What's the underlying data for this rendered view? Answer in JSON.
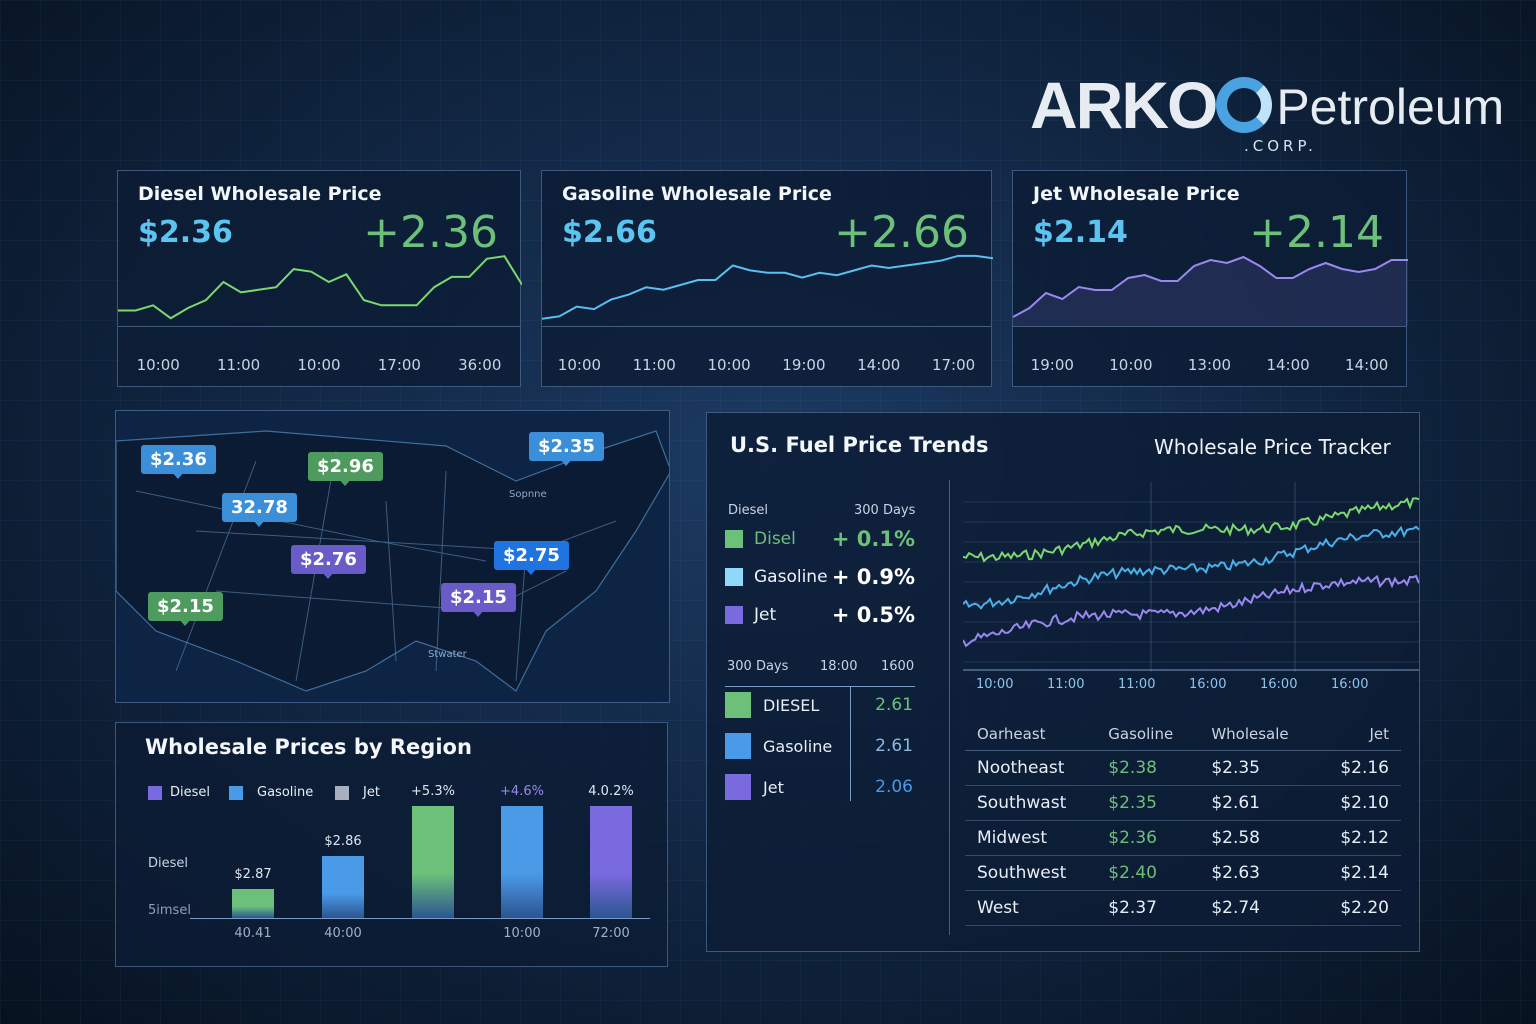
{
  "brand": {
    "name": "ARKO",
    "suffix": "Petroleum",
    "sub": ".CORP."
  },
  "cards": [
    {
      "title": "Diesel Wholesale Price",
      "price": "$2.36",
      "change": "+2.36",
      "color": "#7bd86e",
      "ticks": [
        "10:00",
        "11:00",
        "10:00",
        "17:00",
        "36:00"
      ],
      "series": [
        2.2,
        2.2,
        2.22,
        2.17,
        2.21,
        2.24,
        2.31,
        2.27,
        2.28,
        2.29,
        2.36,
        2.35,
        2.31,
        2.34,
        2.24,
        2.22,
        2.22,
        2.22,
        2.29,
        2.33,
        2.33,
        2.4,
        2.41,
        2.3
      ]
    },
    {
      "title": "Gasoline Wholesale Price",
      "price": "$2.66",
      "change": "+2.66",
      "color": "#5bc0f0",
      "ticks": [
        "10:00",
        "11:00",
        "10:00",
        "19:00",
        "14:00",
        "17:00"
      ],
      "series": [
        2.4,
        2.41,
        2.45,
        2.44,
        2.48,
        2.5,
        2.53,
        2.52,
        2.54,
        2.56,
        2.56,
        2.62,
        2.6,
        2.59,
        2.59,
        2.57,
        2.59,
        2.58,
        2.6,
        2.62,
        2.61,
        2.62,
        2.63,
        2.64,
        2.66,
        2.66,
        2.65
      ]
    },
    {
      "title": "Jet Wholesale Price",
      "price": "$2.14",
      "change": "+2.14",
      "color": "#9a88f0",
      "ticks": [
        "19:00",
        "10:00",
        "13:00",
        "14:00",
        "14:00"
      ],
      "series": [
        1.9,
        1.93,
        1.98,
        1.96,
        2.0,
        1.99,
        1.99,
        2.03,
        2.04,
        2.02,
        2.02,
        2.07,
        2.09,
        2.08,
        2.1,
        2.07,
        2.03,
        2.03,
        2.06,
        2.08,
        2.06,
        2.05,
        2.06,
        2.09,
        2.09
      ]
    }
  ],
  "map": {
    "pins": [
      {
        "label": "$2.36",
        "color": "#3a8fd8"
      },
      {
        "label": "$2.96",
        "color": "#4f9a5e"
      },
      {
        "label": "32.78",
        "color": "#3a8fd8"
      },
      {
        "label": "$2.76",
        "color": "#6a5cc8"
      },
      {
        "label": "$2.35",
        "color": "#3a8fd8"
      },
      {
        "label": "$2.75",
        "color": "#1f74e0"
      },
      {
        "label": "$2.15",
        "color": "#6a5cc8"
      },
      {
        "label": "$2.15",
        "color": "#4f9a5e"
      }
    ],
    "labels": [
      "Sopnne",
      "Stwater"
    ]
  },
  "region": {
    "title": "Wholesale Prices by Region",
    "legend": [
      {
        "label": "Diesel",
        "color": "#7a6ae0"
      },
      {
        "label": "Gasoline",
        "color": "#4a9ae8"
      },
      {
        "label": "Jet",
        "color": "#a8b0c0"
      }
    ],
    "ylabels": [
      "Diesel",
      "5imsel"
    ],
    "bars": [
      {
        "label": "$2.87",
        "x": "40.41",
        "level": 0.26,
        "color": "#6cc07a"
      },
      {
        "label": "$2.86",
        "x": "40:00",
        "level": 0.55,
        "color": "#4a9ae8"
      },
      {
        "label": "+5.3%",
        "x": "",
        "level": 1,
        "color": "#6cc07a"
      },
      {
        "label": "+4.6%",
        "x": "10:00",
        "level": 1,
        "color": "#4a9ae8",
        "labelColor": "#9a88f0"
      },
      {
        "label": "4.0.2%",
        "x": "72:00",
        "level": 1,
        "color": "#7a6ae0"
      }
    ]
  },
  "trends": {
    "title": "U.S. Fuel Price Trends",
    "subtitle": "Wholesale Price Tracker",
    "head": {
      "left": "Diesel",
      "right": "300 Days"
    },
    "changes": [
      {
        "name": "Disel",
        "value": "+ 0.1%",
        "color": "#6cc07a",
        "nameColor": "#6cc07a"
      },
      {
        "name": "Gasoline",
        "value": "+ 0.9%",
        "color": "#8fd8f8"
      },
      {
        "name": "Jet",
        "value": "+ 0.5%",
        "color": "#7a6ae0"
      }
    ],
    "cols": [
      "300 Days",
      "18:00",
      "1600"
    ],
    "latest": [
      {
        "name": "DIESEL",
        "value": "2.61",
        "color": "#6cc07a",
        "valueColor": "#6cc07a"
      },
      {
        "name": "Gasoline",
        "value": "2.61",
        "color": "#4a9ae8",
        "valueColor": "#8ab8e0"
      },
      {
        "name": "Jet",
        "value": "2.06",
        "color": "#7a6ae0",
        "valueColor": "#4a9ae8"
      }
    ],
    "xticks": [
      "10:00",
      "11:00",
      "11:00",
      "16:00",
      "16:00",
      "16:00"
    ],
    "series_colors": [
      "#7bd86e",
      "#4ab0ea",
      "#9a88f0"
    ]
  },
  "table": {
    "headers": [
      "Oarheast",
      "Gasoline",
      "Wholesale",
      "Jet"
    ],
    "rows": [
      [
        "Nootheast",
        "$2.38",
        "$2.35",
        "$2.16"
      ],
      [
        "Southwast",
        "$2.35",
        "$2.61",
        "$2.10"
      ],
      [
        "Midwest",
        "$2.36",
        "$2.58",
        "$2.12"
      ],
      [
        "Southwest",
        "$2.40",
        "$2.63",
        "$2.14"
      ],
      [
        "West",
        "$2.37",
        "$2.74",
        "$2.20"
      ]
    ],
    "green_rows": [
      0,
      1,
      2,
      3
    ]
  }
}
